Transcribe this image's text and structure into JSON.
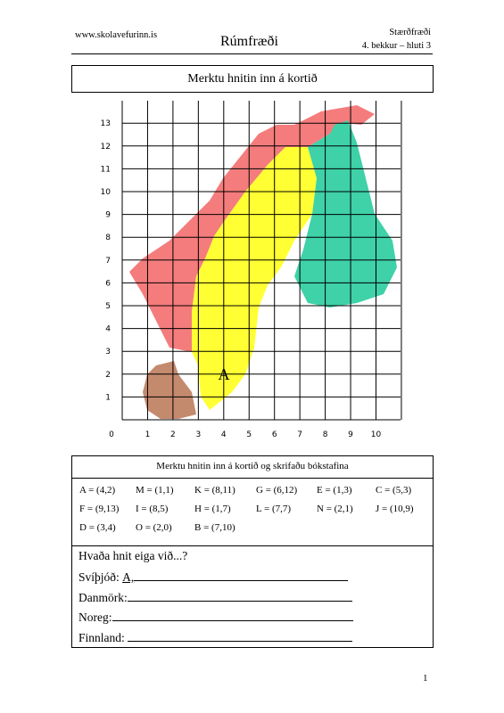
{
  "header": {
    "site": "www.skolavefurinn.is",
    "title": "Rúmfræði",
    "subject": "Stærðfræði",
    "grade": "4. bekkur – hluti 3"
  },
  "title": "Merktu hnitin inn á kortið",
  "map": {
    "x_labels": [
      0,
      1,
      2,
      3,
      4,
      5,
      6,
      7,
      8,
      9,
      10
    ],
    "y_labels": [
      1,
      2,
      3,
      4,
      5,
      6,
      7,
      8,
      9,
      10,
      11,
      12,
      13
    ],
    "point_letter": "A"
  },
  "task": {
    "heading": "Merktu hnitin inn á kortið og skrifaðu bókstafina",
    "entries": [
      [
        "A = (4,2)",
        "M = (1,1)",
        "K = (8,11)",
        "G = (6,12)",
        "E = (1,3)",
        "C = (5,3)"
      ],
      [
        "F = (9,13)",
        "I = (8,5)",
        "H = (1,7)",
        "L = (7,7)",
        "N = (2,1)",
        "J = (10,9)"
      ],
      [
        "D = (3,4)",
        "O = (2,0)",
        "B = (7,10)"
      ]
    ],
    "question": "Hvaða hnit eiga við...?",
    "answers": [
      {
        "label": "Svíþjóð:",
        "answer": "A,"
      },
      {
        "label": "Danmörk:"
      },
      {
        "label": "Noreg:"
      },
      {
        "label": "Finnland:"
      }
    ]
  },
  "page_number": "1"
}
